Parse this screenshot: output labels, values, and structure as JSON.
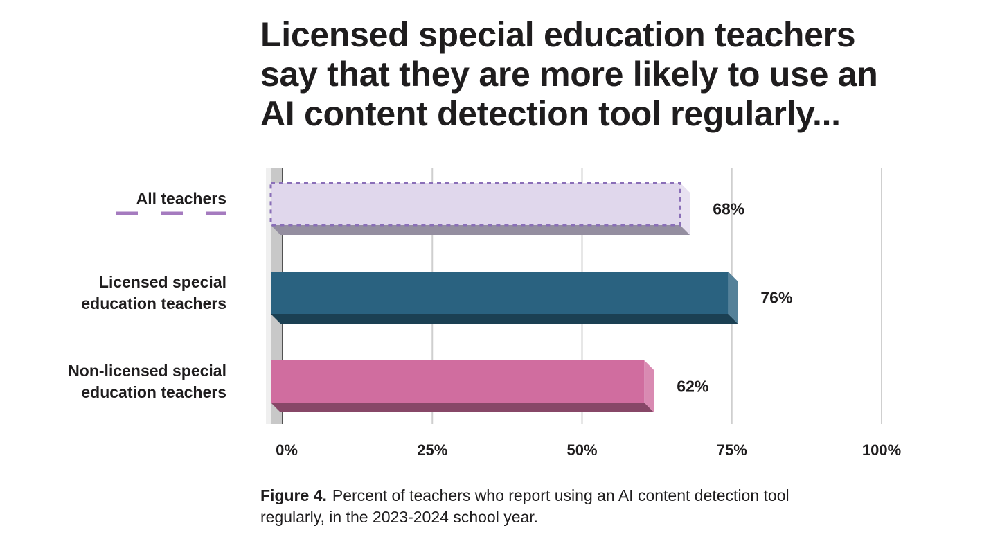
{
  "title_lines": [
    "Licensed special education teachers",
    "say that they are more likely to use an",
    "AI content detection tool regularly..."
  ],
  "caption": {
    "label": "Figure 4.",
    "lines": [
      "Percent of teachers who report using an AI content detection tool",
      "regularly, in the 2023-2024 school year."
    ]
  },
  "colors": {
    "all_teachers": "#e0d7ec",
    "all_teachers_border": "#8a6fb8",
    "licensed": "#2a6280",
    "non_licensed": "#d06d9f",
    "legend_dash": "#a57bbf",
    "grid": "#cfcfcf"
  },
  "chart_data": {
    "type": "bar",
    "orientation": "horizontal",
    "categories": [
      [
        "All teachers"
      ],
      [
        "Licensed special",
        "education teachers"
      ],
      [
        "Non-licensed special",
        "education teachers"
      ]
    ],
    "values": [
      68,
      76,
      62
    ],
    "data_labels": [
      "68%",
      "76%",
      "62%"
    ],
    "xlim": [
      0,
      100
    ],
    "xticks": [
      0,
      25,
      50,
      75,
      100
    ],
    "xtick_labels": [
      "0%",
      "25%",
      "50%",
      "75%",
      "100%"
    ],
    "grid": "vertical",
    "xlabel": "",
    "ylabel": ""
  }
}
